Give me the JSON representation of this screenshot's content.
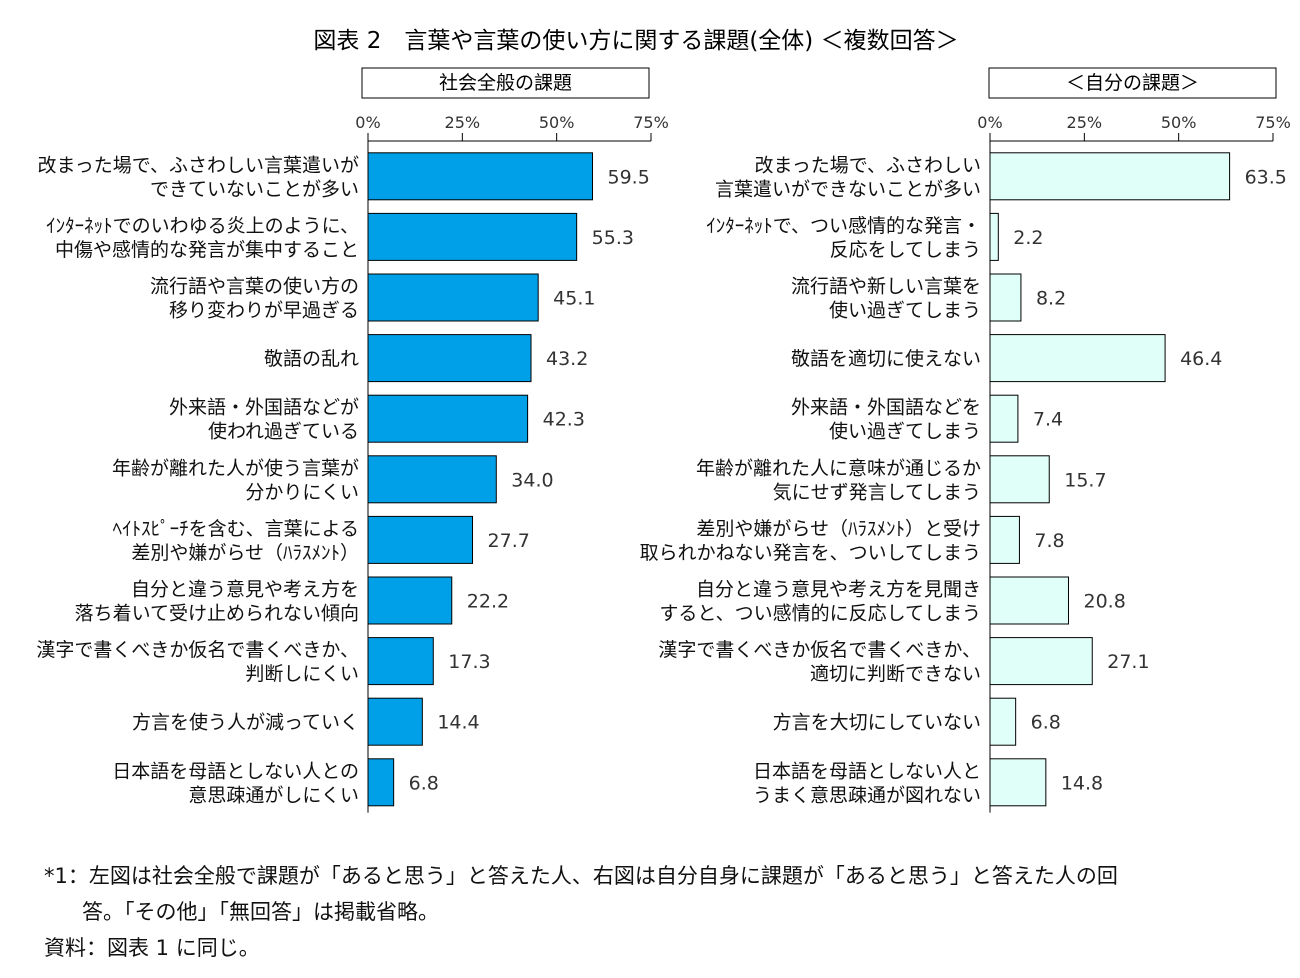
{
  "title": "図表 2　言葉や言葉の使い方に関する課題(全体) ＜複数回答＞",
  "chart_data": [
    {
      "type": "bar",
      "orientation": "horizontal",
      "panel_title": "社会全般の課題",
      "color": "#00a0e9",
      "xlim": [
        0,
        75
      ],
      "ticks": [
        "0%",
        "25%",
        "50%",
        "75%"
      ],
      "categories": [
        [
          "改まった場で、ふさわしい言葉遣いが",
          "できていないことが多い"
        ],
        [
          "ｲﾝﾀｰﾈｯﾄでのいわゆる炎上のように、",
          "中傷や感情的な発言が集中すること"
        ],
        [
          "流行語や言葉の使い方の",
          "移り変わりが早過ぎる"
        ],
        [
          "敬語の乱れ"
        ],
        [
          "外来語・外国語などが",
          "使われ過ぎている"
        ],
        [
          "年齢が離れた人が使う言葉が",
          "分かりにくい"
        ],
        [
          "ﾍｲﾄｽﾋﾟｰﾁを含む、言葉による",
          "差別や嫌がらせ（ﾊﾗｽﾒﾝﾄ）"
        ],
        [
          "自分と違う意見や考え方を",
          "落ち着いて受け止められない傾向"
        ],
        [
          "漢字で書くべきか仮名で書くべきか、",
          "判断しにくい"
        ],
        [
          "方言を使う人が減っていく"
        ],
        [
          "日本語を母語としない人との",
          "意思疎通がしにくい"
        ]
      ],
      "values": [
        59.5,
        55.3,
        45.1,
        43.2,
        42.3,
        34.0,
        27.7,
        22.2,
        17.3,
        14.4,
        6.8
      ],
      "labels": [
        "59.5",
        "55.3",
        "45.1",
        "43.2",
        "42.3",
        "34.0",
        "27.7",
        "22.2",
        "17.3",
        "14.4",
        "6.8"
      ]
    },
    {
      "type": "bar",
      "orientation": "horizontal",
      "panel_title": "＜自分の課題＞",
      "color": "#e0fff8",
      "xlim": [
        0,
        75
      ],
      "ticks": [
        "0%",
        "25%",
        "50%",
        "75%"
      ],
      "categories": [
        [
          "改まった場で、ふさわしい",
          "言葉遣いができないことが多い"
        ],
        [
          "ｲﾝﾀｰﾈｯﾄで、つい感情的な発言・",
          "反応をしてしまう"
        ],
        [
          "流行語や新しい言葉を",
          "使い過ぎてしまう"
        ],
        [
          "敬語を適切に使えない"
        ],
        [
          "外来語・外国語などを",
          "使い過ぎてしまう"
        ],
        [
          "年齢が離れた人に意味が通じるか",
          "気にせず発言してしまう"
        ],
        [
          "差別や嫌がらせ（ﾊﾗｽﾒﾝﾄ）と受け",
          "取られかねない発言を、ついしてしまう"
        ],
        [
          "自分と違う意見や考え方を見聞き",
          "すると、つい感情的に反応してしまう"
        ],
        [
          "漢字で書くべきか仮名で書くべきか、",
          "適切に判断できない"
        ],
        [
          "方言を大切にしていない"
        ],
        [
          "日本語を母語としない人と",
          "うまく意思疎通が図れない"
        ]
      ],
      "values": [
        63.5,
        2.2,
        8.2,
        46.4,
        7.4,
        15.7,
        7.8,
        20.8,
        27.1,
        6.8,
        14.8
      ],
      "labels": [
        "63.5",
        "2.2",
        "8.2",
        "46.4",
        "7.4",
        "15.7",
        "7.8",
        "20.8",
        "27.1",
        "6.8",
        "14.8"
      ]
    }
  ],
  "notes": {
    "note1_line1": "*1：左図は社会全般で課題が「あると思う」と答えた人、右図は自分自身に課題が「あると思う」と答えた人の回",
    "note1_line2": "答。「その他」「無回答」は掲載省略。",
    "source": "資料：図表 1 に同じ。"
  }
}
